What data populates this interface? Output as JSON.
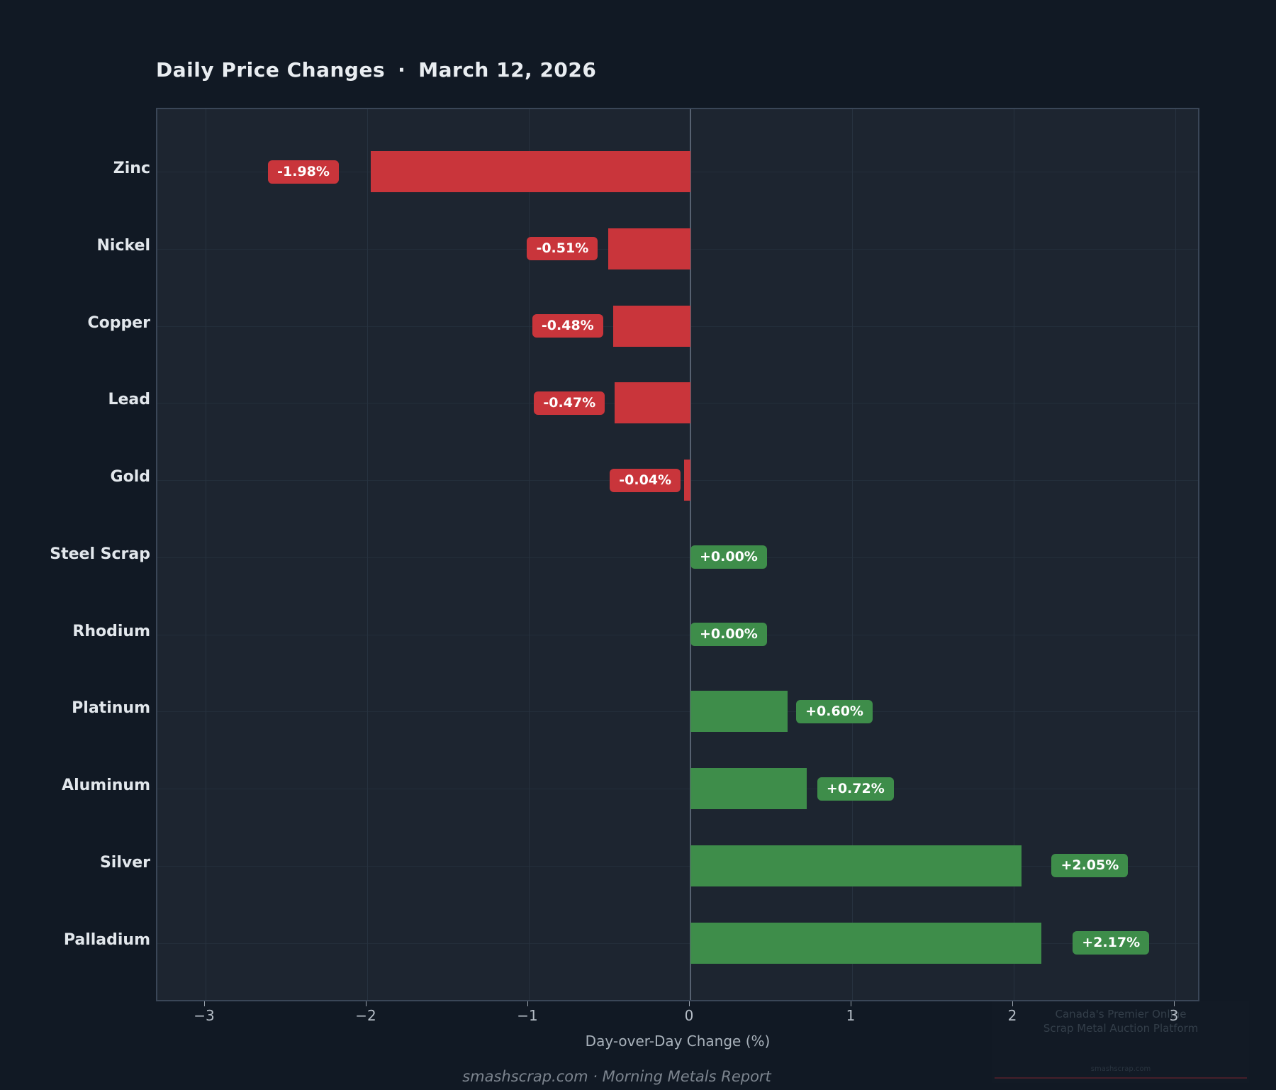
{
  "header": {
    "title": "Daily Price Changes",
    "separator": "·",
    "date": "March 12, 2026"
  },
  "chart_data": {
    "type": "bar",
    "orientation": "horizontal",
    "title": "Daily Price Changes · March 12, 2026",
    "xlabel": "Day-over-Day Change (%)",
    "ylabel": "",
    "xlim": [
      -3.3,
      3.16
    ],
    "grid": true,
    "zero_line": true,
    "categories": [
      "Zinc",
      "Nickel",
      "Copper",
      "Lead",
      "Gold",
      "Steel Scrap",
      "Rhodium",
      "Platinum",
      "Aluminum",
      "Silver",
      "Palladium"
    ],
    "values": [
      -1.98,
      -0.51,
      -0.48,
      -0.47,
      -0.04,
      0.0,
      0.0,
      0.6,
      0.72,
      2.05,
      2.17
    ],
    "value_labels": [
      "-1.98%",
      "-0.51%",
      "-0.48%",
      "-0.47%",
      "-0.04%",
      "+0.00%",
      "+0.00%",
      "+0.60%",
      "+0.72%",
      "+2.05%",
      "+2.17%"
    ],
    "x_ticks": [
      -3,
      -2,
      -1,
      0,
      1,
      2,
      3
    ],
    "x_tick_labels": [
      "−3",
      "−2",
      "−1",
      "0",
      "1",
      "2",
      "3"
    ],
    "colors": {
      "negative": "#c9353b",
      "positive": "#3e8d4a",
      "plot_background": "#1d2530",
      "page_background": "#111924",
      "zero_line": "#566170"
    }
  },
  "footer": {
    "credit": "smashscrap.com  ·  Morning Metals Report"
  },
  "watermark": {
    "line1": "Canada's Premier Online",
    "line2": "Scrap Metal Auction Platform",
    "small": "smashscrap.com"
  }
}
